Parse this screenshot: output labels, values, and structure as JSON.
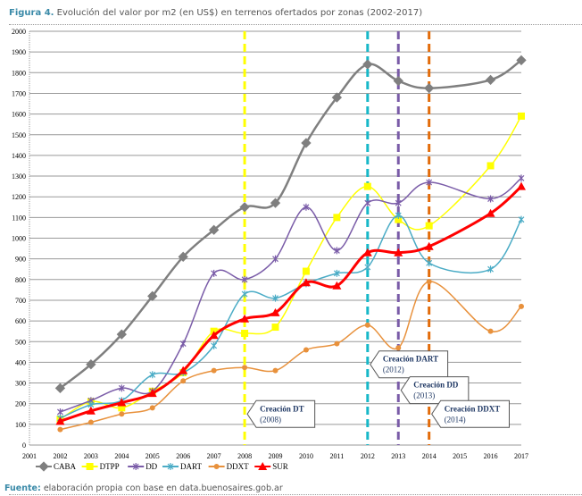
{
  "title_prefix": "Figura 4.",
  "title": "Evolución del valor por m2 (en US$) en terrenos ofertados por zonas (2002-2017)",
  "source_prefix": "Fuente:",
  "source": "elaboración propia con base en data.buenosaires.gob.ar",
  "chart_data": {
    "type": "line",
    "xlim": [
      2001,
      2017
    ],
    "ylim": [
      0,
      2000
    ],
    "x_ticks": [
      2001,
      2002,
      2003,
      2004,
      2005,
      2006,
      2007,
      2008,
      2009,
      2010,
      2011,
      2012,
      2013,
      2014,
      2015,
      2016,
      2017
    ],
    "y_ticks": [
      0,
      100,
      200,
      300,
      400,
      500,
      600,
      700,
      800,
      900,
      1000,
      1100,
      1200,
      1300,
      1400,
      1500,
      1600,
      1700,
      1800,
      1900,
      2000
    ],
    "grid": true,
    "legend_position": "bottom",
    "x": [
      2002,
      2003,
      2004,
      2005,
      2006,
      2007,
      2008,
      2009,
      2010,
      2011,
      2012,
      2013,
      2014,
      2016,
      2017
    ],
    "series": [
      {
        "name": "CABA",
        "color": "#7f7f7f",
        "marker": "diamond",
        "values": [
          275,
          390,
          535,
          720,
          910,
          1040,
          1150,
          1170,
          1460,
          1680,
          1840,
          1760,
          1725,
          1765,
          1860
        ]
      },
      {
        "name": "DTPP",
        "color": "#ffff00",
        "marker": "square",
        "values": [
          125,
          210,
          180,
          260,
          350,
          550,
          540,
          570,
          840,
          1100,
          1250,
          1090,
          1060,
          1350,
          1590
        ]
      },
      {
        "name": "DD",
        "color": "#7a5ca8",
        "marker": "x",
        "values": [
          160,
          215,
          275,
          260,
          490,
          830,
          800,
          900,
          1150,
          940,
          1170,
          1170,
          1270,
          1190,
          1290
        ]
      },
      {
        "name": "DART",
        "color": "#4bacc6",
        "marker": "star",
        "values": [
          130,
          195,
          215,
          340,
          350,
          480,
          730,
          710,
          780,
          830,
          860,
          1110,
          880,
          850,
          1090
        ]
      },
      {
        "name": "DDXT",
        "color": "#e8913c",
        "marker": "circle",
        "values": [
          75,
          110,
          150,
          180,
          310,
          360,
          375,
          360,
          460,
          490,
          580,
          470,
          790,
          550,
          670
        ]
      },
      {
        "name": "SUR",
        "color": "#ff0000",
        "marker": "triangle",
        "values": [
          115,
          165,
          205,
          250,
          360,
          530,
          610,
          640,
          785,
          770,
          930,
          930,
          960,
          1120,
          1250
        ]
      }
    ],
    "annotations": [
      {
        "x": 2008,
        "color": "#ffff00",
        "label": "Creación DT",
        "sub": "(2008)",
        "y": 150
      },
      {
        "x": 2012,
        "color": "#17b8c8",
        "label": "Creación DART",
        "sub": "(2012)",
        "y": 390
      },
      {
        "x": 2013,
        "color": "#7a5ca8",
        "label": "Creación DD",
        "sub": "(2013)",
        "y": 265
      },
      {
        "x": 2014,
        "color": "#e36c0a",
        "label": "Creación DDXT",
        "sub": "(2014)",
        "y": 150
      }
    ]
  }
}
